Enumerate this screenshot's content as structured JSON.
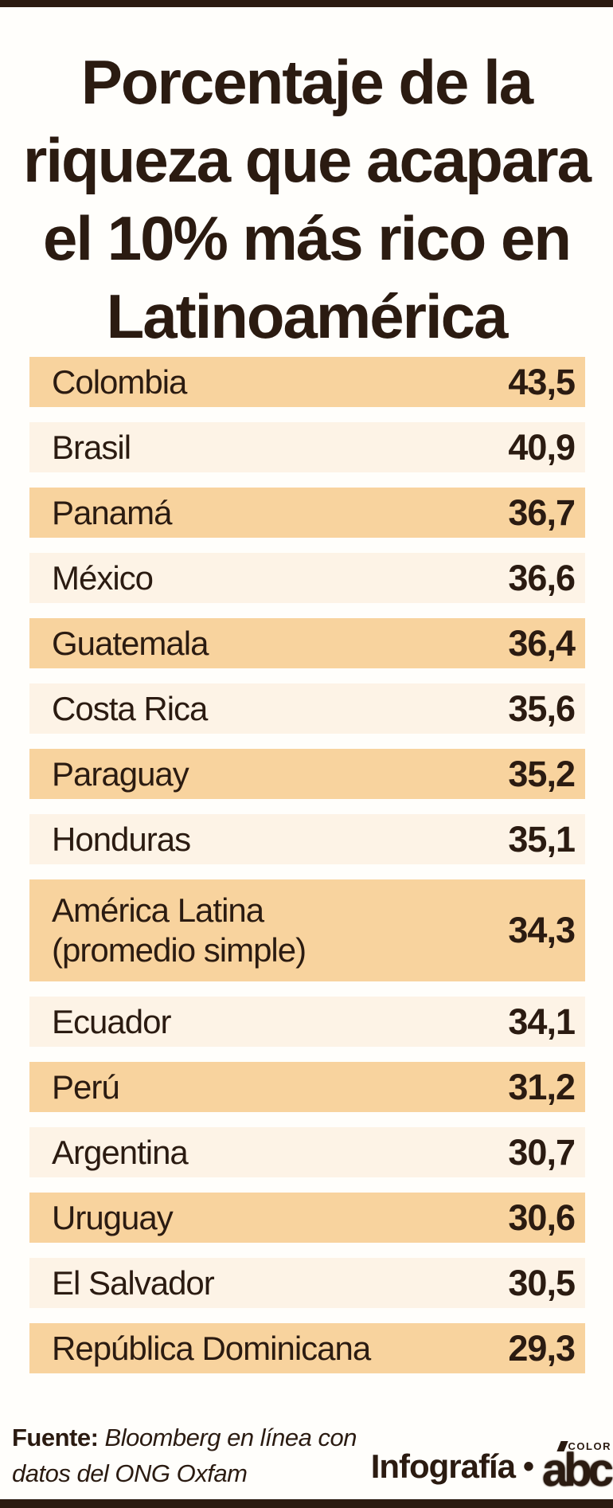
{
  "title": "Porcentaje de la\nriqueza que acapara\nel 10% más rico en\nLatinoamérica",
  "chart_data": {
    "type": "table",
    "title": "Porcentaje de la riqueza que acapara el 10% más rico en Latinoamérica",
    "unit": "percent of wealth",
    "categories": [
      "Colombia",
      "Brasil",
      "Panamá",
      "México",
      "Guatemala",
      "Costa Rica",
      "Paraguay",
      "Honduras",
      "América Latina (promedio simple)",
      "Ecuador",
      "Perú",
      "Argentina",
      "Uruguay",
      "El Salvador",
      "República Dominicana"
    ],
    "values": [
      43.5,
      40.9,
      36.7,
      36.6,
      36.4,
      35.6,
      35.2,
      35.1,
      34.3,
      34.1,
      31.2,
      30.7,
      30.6,
      30.5,
      29.3
    ]
  },
  "table": {
    "rows": [
      {
        "label": "Colombia",
        "value": "43,5"
      },
      {
        "label": "Brasil",
        "value": "40,9"
      },
      {
        "label": "Panamá",
        "value": "36,7"
      },
      {
        "label": "México",
        "value": "36,6"
      },
      {
        "label": "Guatemala",
        "value": "36,4"
      },
      {
        "label": "Costa Rica",
        "value": "35,6"
      },
      {
        "label": "Paraguay",
        "value": "35,2"
      },
      {
        "label": "Honduras",
        "value": "35,1"
      },
      {
        "label": "América Latina\n(promedio simple)",
        "value": "34,3"
      },
      {
        "label": "Ecuador",
        "value": "34,1"
      },
      {
        "label": "Perú",
        "value": "31,2"
      },
      {
        "label": "Argentina",
        "value": "30,7"
      },
      {
        "label": "Uruguay",
        "value": "30,6"
      },
      {
        "label": "El Salvador",
        "value": "30,5"
      },
      {
        "label": "República Dominicana",
        "value": "29,3"
      }
    ]
  },
  "footer": {
    "source_label": "Fuente:",
    "source_text": " Bloomberg en línea con datos del ONG Oxfam",
    "credit_label": "Infografía",
    "bullet": "•",
    "logo_text": "abc",
    "logo_tag": "COLOR"
  },
  "colors": {
    "ink": "#2b1b11",
    "row_orange": "#f8d39e",
    "row_cream": "#fdf3e6",
    "background": "#fffefb"
  }
}
